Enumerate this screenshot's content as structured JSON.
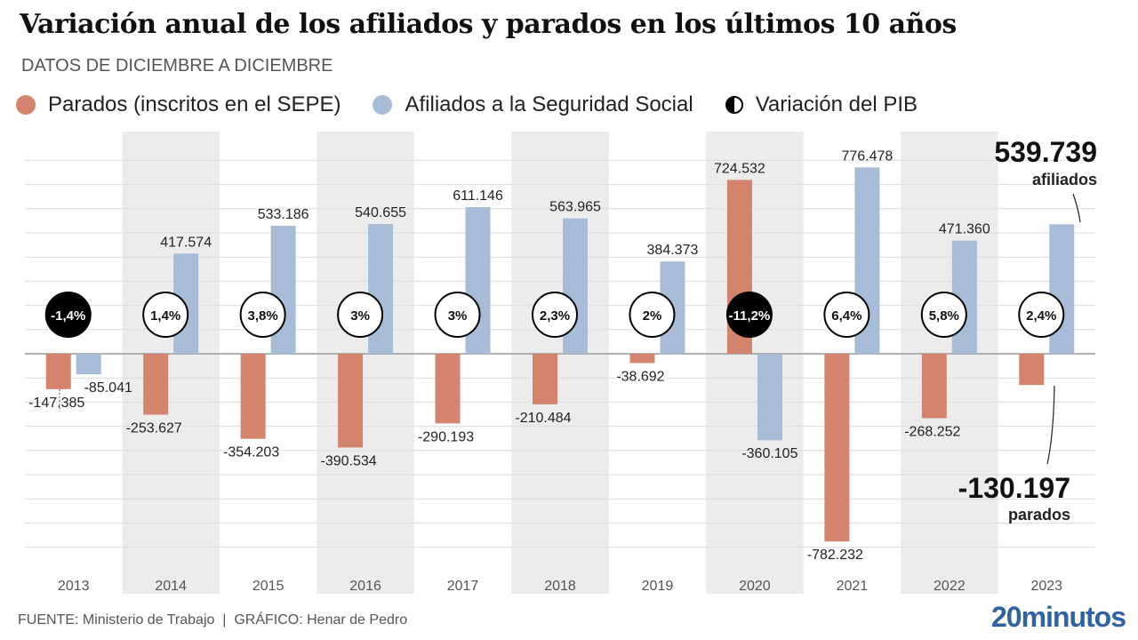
{
  "header": {
    "title": "Variación anual de los afiliados y parados en los últimos 10 años",
    "subtitle": "DATOS DE DICIEMBRE A DICIEMBRE"
  },
  "legend": [
    {
      "label": "Parados (inscritos en el SEPE)",
      "color": "#d4836c",
      "icon": "circle-icon"
    },
    {
      "label": "Afiliados a la Seguridad Social",
      "color": "#a7bcd6",
      "icon": "circle-icon"
    },
    {
      "label": "Variación del PIB",
      "color": "#000000",
      "icon": "half-circle-icon"
    }
  ],
  "footer": {
    "source": "FUENTE: Ministerio de Trabajo  |  GRÁFICO: Henar de Pedro",
    "logo": "20minutos"
  },
  "chart_data": {
    "type": "bar",
    "title": "Variación anual de los afiliados y parados en los últimos 10 años",
    "subtitle": "DATOS DE DICIEMBRE A DICIEMBRE",
    "categories": [
      "2013",
      "2014",
      "2015",
      "2016",
      "2017",
      "2018",
      "2019",
      "2020",
      "2021",
      "2022",
      "2023"
    ],
    "series": [
      {
        "name": "Parados (inscritos en el SEPE)",
        "color": "#d4836c",
        "values": [
          -147385,
          -253627,
          -354203,
          -390534,
          -290193,
          -210484,
          -38692,
          724532,
          -782232,
          -268252,
          -130197
        ],
        "labels": [
          "-147.385",
          "-253.627",
          "-354.203",
          "-390.534",
          "-290.193",
          "-210.484",
          "-38.692",
          "724.532",
          "-782.232",
          "-268.252",
          ""
        ]
      },
      {
        "name": "Afiliados a la Seguridad Social",
        "color": "#a7bcd6",
        "values": [
          -85041,
          417574,
          533186,
          540655,
          611146,
          563965,
          384373,
          -360105,
          776478,
          471360,
          539739
        ],
        "labels": [
          "-85.041",
          "417.574",
          "533.186",
          "540.655",
          "611.146",
          "563.965",
          "384.373",
          "-360.105",
          "776.478",
          "471.360",
          ""
        ]
      }
    ],
    "gdp": {
      "name": "Variación del PIB",
      "values": [
        -1.4,
        1.4,
        3.8,
        3.0,
        3.0,
        2.3,
        2.0,
        -11.2,
        6.4,
        5.8,
        2.4
      ],
      "labels": [
        "-1,4%",
        "1,4%",
        "3,8%",
        "3%",
        "3%",
        "2,3%",
        "2%",
        "-11,2%",
        "6,4%",
        "5,8%",
        "2,4%"
      ]
    },
    "annotations": [
      {
        "value": "539.739",
        "text": "afiliados",
        "category": "2023",
        "series": "Afiliados a la Seguridad Social"
      },
      {
        "value": "-130.197",
        "text": "parados",
        "category": "2023",
        "series": "Parados (inscritos en el SEPE)"
      }
    ],
    "ylim": [
      -800000,
      800000
    ],
    "grid": true,
    "xlabel": "",
    "ylabel": "",
    "legend_position": "top-left"
  }
}
